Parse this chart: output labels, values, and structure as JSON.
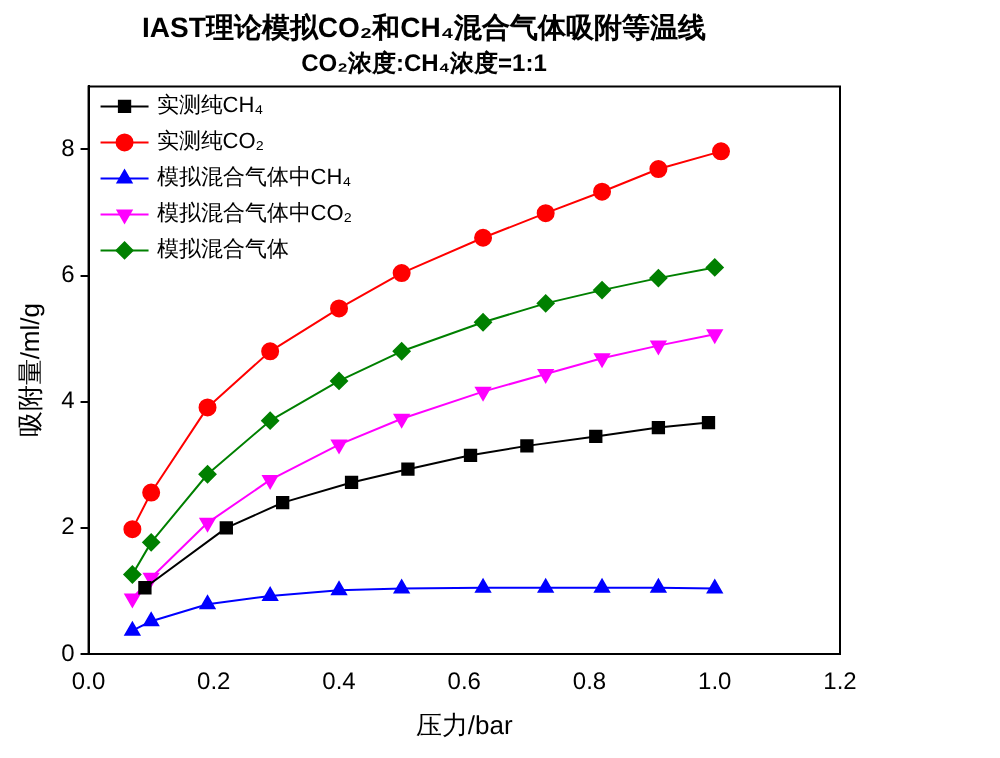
{
  "chart_data": {
    "type": "line",
    "title": "IAST理论模拟CO₂和CH₄混合气体吸附等温线",
    "subtitle": "CO₂浓度:CH₄浓度=1:1",
    "xlabel": "压力/bar",
    "ylabel": "吸附量/ml/g",
    "xlim": [
      0,
      1.2
    ],
    "xticks": [
      {
        "value": 0,
        "label": "0.0"
      },
      0.2,
      0.4,
      0.6,
      0.8,
      {
        "value": 1,
        "label": "1.0"
      },
      {
        "value": 1.2,
        "label": "1.2"
      }
    ],
    "ylim": [
      0,
      9
    ],
    "yticks": [
      0,
      2,
      4,
      6,
      8
    ],
    "grid": false,
    "legend": "top left",
    "line_style": "solid",
    "series": [
      {
        "name": "实测纯CH₄",
        "color": "#000000",
        "marker": "square",
        "x": [
          0.09,
          0.22,
          0.31,
          0.42,
          0.51,
          0.61,
          0.7,
          0.81,
          0.91,
          0.99
        ],
        "values": [
          1.05,
          2.0,
          2.4,
          2.72,
          2.93,
          3.15,
          3.3,
          3.45,
          3.59,
          3.67
        ]
      },
      {
        "name": "实测纯CO₂",
        "color": "#ff0000",
        "marker": "circle",
        "x": [
          0.07,
          0.1,
          0.19,
          0.29,
          0.4,
          0.5,
          0.63,
          0.73,
          0.82,
          0.91,
          1.01
        ],
        "values": [
          1.98,
          2.56,
          3.91,
          4.8,
          5.48,
          6.04,
          6.6,
          6.99,
          7.33,
          7.69,
          7.97
        ]
      },
      {
        "name": "模拟混合气体中CH₄",
        "color": "#0000ff",
        "marker": "triangle",
        "x": [
          0.07,
          0.1,
          0.19,
          0.29,
          0.4,
          0.5,
          0.63,
          0.73,
          0.82,
          0.91,
          1.0
        ],
        "values": [
          0.37,
          0.52,
          0.79,
          0.92,
          1.01,
          1.04,
          1.05,
          1.05,
          1.05,
          1.05,
          1.04
        ]
      },
      {
        "name": "模拟混合气体中CO₂",
        "color": "#ff00ff",
        "marker": "triangle-down",
        "x": [
          0.07,
          0.1,
          0.19,
          0.29,
          0.4,
          0.5,
          0.63,
          0.73,
          0.82,
          0.91,
          1.0
        ],
        "values": [
          0.88,
          1.21,
          2.08,
          2.76,
          3.32,
          3.73,
          4.16,
          4.44,
          4.69,
          4.89,
          5.07
        ]
      },
      {
        "name": "模拟混合气体",
        "color": "#008000",
        "marker": "diamond",
        "x": [
          0.07,
          0.1,
          0.19,
          0.29,
          0.4,
          0.5,
          0.63,
          0.73,
          0.82,
          0.91,
          1.0
        ],
        "values": [
          1.26,
          1.77,
          2.85,
          3.7,
          4.33,
          4.8,
          5.26,
          5.56,
          5.77,
          5.96,
          6.13
        ]
      }
    ]
  }
}
